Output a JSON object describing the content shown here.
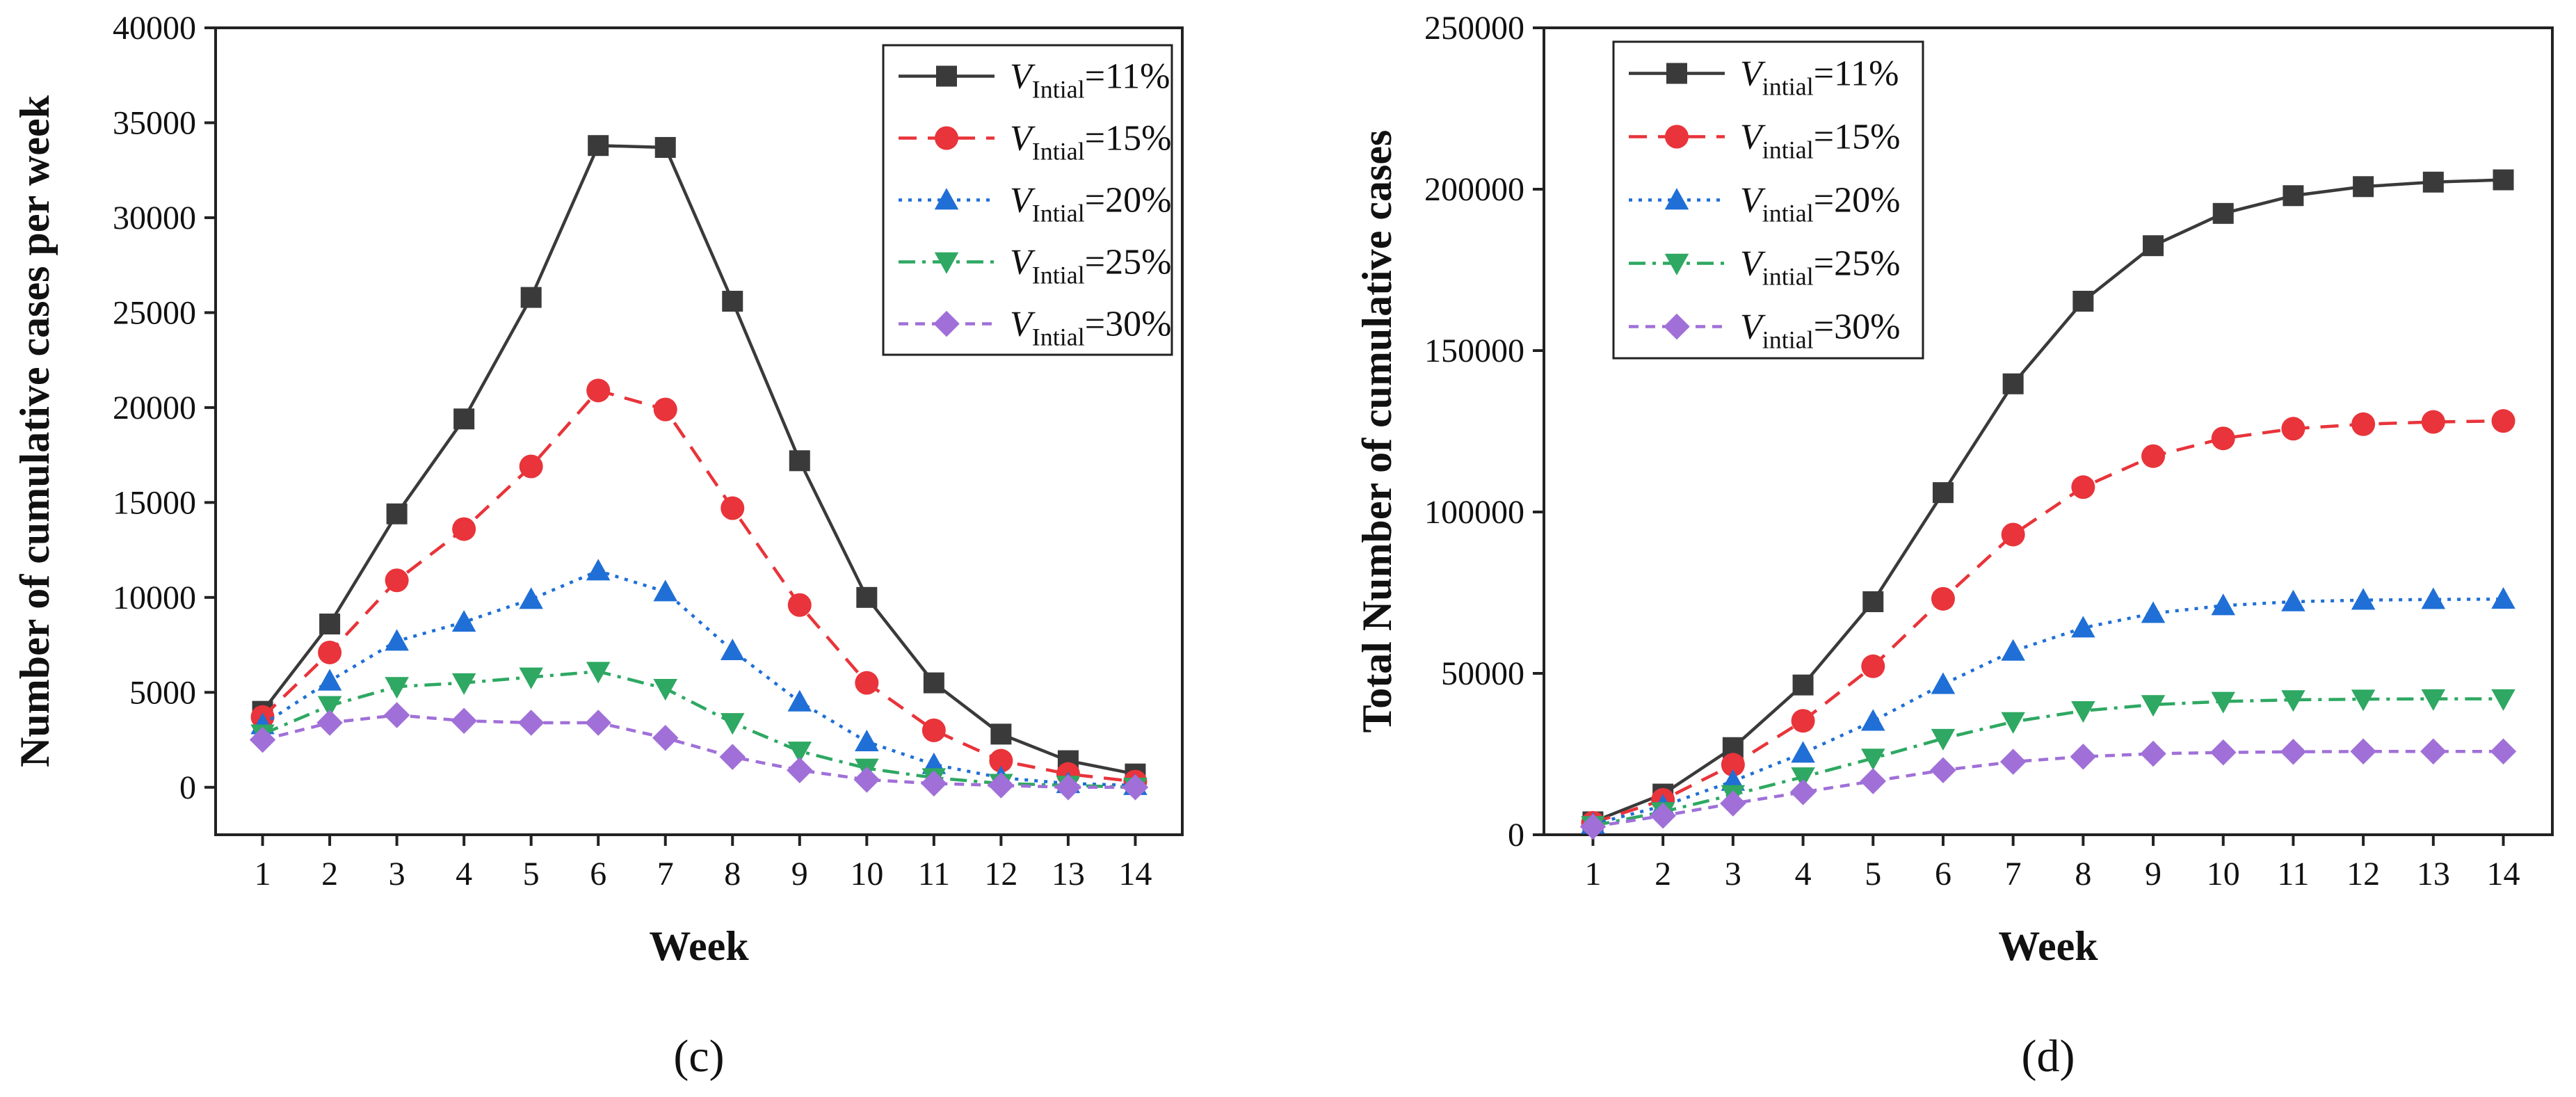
{
  "chart_data": [
    {
      "type": "line",
      "panel_label": "(c)",
      "xlabel": "Week",
      "ylabel": "Number of cumulative cases per week",
      "xlim": [
        0.3,
        14.7
      ],
      "ylim": [
        -2500,
        40000
      ],
      "xticks": [
        "1",
        "2",
        "3",
        "4",
        "5",
        "6",
        "7",
        "8",
        "9",
        "10",
        "11",
        "12",
        "13",
        "14"
      ],
      "yticks": [
        "0",
        "5000",
        "10000",
        "15000",
        "20000",
        "25000",
        "30000",
        "35000",
        "40000"
      ],
      "legend_position": "top-right",
      "x": [
        1,
        2,
        3,
        4,
        5,
        6,
        7,
        8,
        9,
        10,
        11,
        12,
        13,
        14
      ],
      "series": [
        {
          "name": "11%",
          "label_v": "V",
          "label_sub": "Intial",
          "label_value": "=11%",
          "color": "#3a3a3a",
          "marker": "square",
          "dash": "solid",
          "values": [
            4000,
            8600,
            14400,
            19400,
            25800,
            33800,
            33700,
            25600,
            17200,
            10000,
            5500,
            2800,
            1400,
            700
          ]
        },
        {
          "name": "15%",
          "label_v": "V",
          "label_sub": "Intial",
          "label_value": "=15%",
          "color": "#e8343a",
          "marker": "circle",
          "dash": "dashed",
          "values": [
            3700,
            7100,
            10900,
            13600,
            16900,
            20900,
            19900,
            14700,
            9600,
            5500,
            3000,
            1400,
            700,
            300
          ]
        },
        {
          "name": "20%",
          "label_v": "V",
          "label_sub": "Intial",
          "label_value": "=20%",
          "color": "#1f6fd6",
          "marker": "triangle-up",
          "dash": "dotted",
          "values": [
            3300,
            5600,
            7700,
            8700,
            9900,
            11400,
            10300,
            7200,
            4500,
            2400,
            1200,
            500,
            200,
            100
          ]
        },
        {
          "name": "25%",
          "label_v": "V",
          "label_sub": "Intial",
          "label_value": "=25%",
          "color": "#2ea862",
          "marker": "triangle-down",
          "dash": "dashdot",
          "values": [
            2800,
            4300,
            5300,
            5500,
            5800,
            6100,
            5200,
            3400,
            1900,
            1000,
            500,
            200,
            100,
            0
          ]
        },
        {
          "name": "30%",
          "label_v": "V",
          "label_sub": "Intial",
          "label_value": "=30%",
          "color": "#a070d8",
          "marker": "diamond",
          "dash": "shortdash",
          "values": [
            2500,
            3400,
            3800,
            3500,
            3400,
            3400,
            2600,
            1600,
            900,
            400,
            200,
            100,
            0,
            0
          ]
        }
      ]
    },
    {
      "type": "line",
      "panel_label": "(d)",
      "xlabel": "Week",
      "ylabel": "Total Number of cumulative cases",
      "xlim": [
        0.3,
        14.7
      ],
      "ylim": [
        0,
        250000
      ],
      "xticks": [
        "1",
        "2",
        "3",
        "4",
        "5",
        "6",
        "7",
        "8",
        "9",
        "10",
        "11",
        "12",
        "13",
        "14"
      ],
      "yticks": [
        "0",
        "50000",
        "100000",
        "150000",
        "200000",
        "250000"
      ],
      "legend_position": "top-left",
      "x": [
        1,
        2,
        3,
        4,
        5,
        6,
        7,
        8,
        9,
        10,
        11,
        12,
        13,
        14
      ],
      "series": [
        {
          "name": "11%",
          "label_v": "V",
          "label_sub": "intial",
          "label_value": "=11%",
          "color": "#3a3a3a",
          "marker": "square",
          "dash": "solid",
          "values": [
            4000,
            12600,
            27000,
            46400,
            72200,
            106000,
            139700,
            165300,
            182500,
            192500,
            198000,
            200800,
            202200,
            202900
          ]
        },
        {
          "name": "15%",
          "label_v": "V",
          "label_sub": "intial",
          "label_value": "=15%",
          "color": "#e8343a",
          "marker": "circle",
          "dash": "dashed",
          "values": [
            3700,
            10800,
            21700,
            35300,
            52200,
            73100,
            93000,
            107700,
            117300,
            122800,
            125800,
            127200,
            127900,
            128200
          ]
        },
        {
          "name": "20%",
          "label_v": "V",
          "label_sub": "intial",
          "label_value": "=20%",
          "color": "#1f6fd6",
          "marker": "triangle-up",
          "dash": "dotted",
          "values": [
            3300,
            8900,
            16600,
            25300,
            35200,
            46600,
            56900,
            64100,
            68600,
            71000,
            72200,
            72700,
            72900,
            73000
          ]
        },
        {
          "name": "25%",
          "label_v": "V",
          "label_sub": "intial",
          "label_value": "=25%",
          "color": "#2ea862",
          "marker": "triangle-down",
          "dash": "dashdot",
          "values": [
            2800,
            7100,
            12400,
            17900,
            23700,
            29800,
            35000,
            38400,
            40300,
            41300,
            41800,
            42000,
            42100,
            42100
          ]
        },
        {
          "name": "30%",
          "label_v": "V",
          "label_sub": "intial",
          "label_value": "=30%",
          "color": "#a070d8",
          "marker": "diamond",
          "dash": "shortdash",
          "values": [
            2500,
            5900,
            9700,
            13200,
            16600,
            20000,
            22600,
            24200,
            25100,
            25500,
            25700,
            25800,
            25800,
            25800
          ]
        }
      ]
    }
  ]
}
